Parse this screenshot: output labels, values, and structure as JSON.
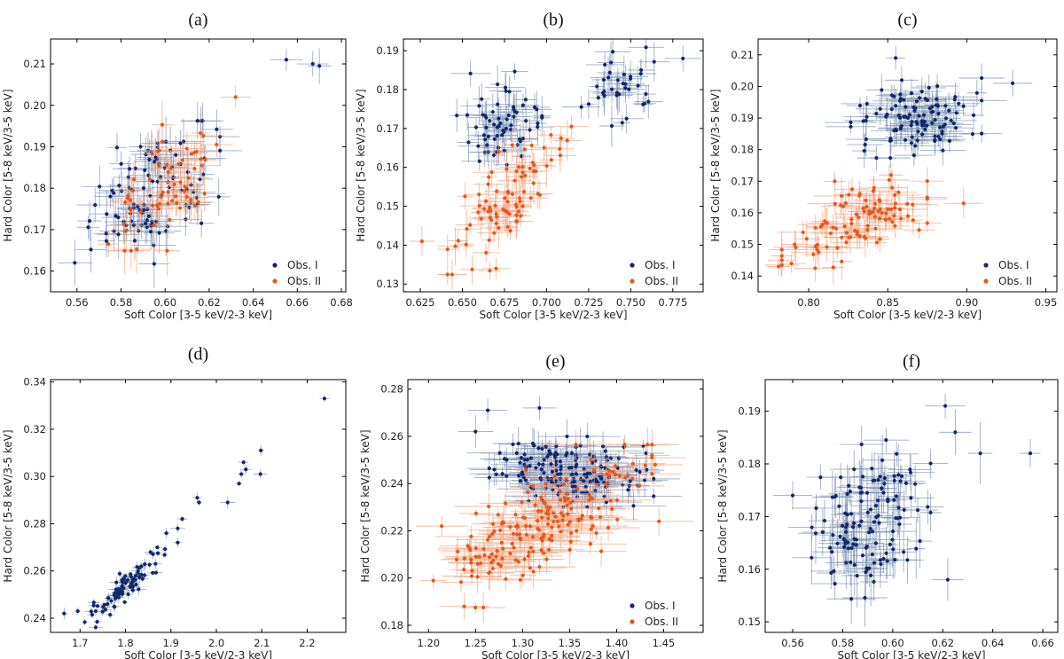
{
  "colors": {
    "obs1": "#13296b",
    "obs1_err": "#7f93b5",
    "obs2": "#e8571c",
    "obs2_err": "#f2a47f"
  },
  "chart_data": [
    {
      "id": "a",
      "type": "scatter",
      "title": "(a)",
      "xlabel": "Soft Color [3-5 keV/2-3 keV]",
      "ylabel": "Hard Color [5-8 keV/3-5 keV]",
      "xlim": [
        0.548,
        0.682
      ],
      "ylim": [
        0.155,
        0.216
      ],
      "xticks": [
        0.56,
        0.58,
        0.6,
        0.62,
        0.64,
        0.66,
        0.68
      ],
      "xtick_labels": [
        "0.56",
        "0.58",
        "0.60",
        "0.62",
        "0.64",
        "0.66",
        "0.68"
      ],
      "yticks": [
        0.16,
        0.17,
        0.18,
        0.19,
        0.2,
        0.21
      ],
      "ytick_labels": [
        "0.16",
        "0.17",
        "0.18",
        "0.19",
        "0.20",
        "0.21"
      ],
      "legend": "bottom-right",
      "series": [
        {
          "name": "Obs. I",
          "color": "obs1",
          "n": 110,
          "seed": 11,
          "clusters": [
            {
              "cx": 0.595,
              "cy": 0.179,
              "sx": 0.013,
              "sy": 0.0075,
              "rho": 0.45,
              "w": 1
            }
          ],
          "ex": [
            0.004,
            0.01
          ],
          "ey": [
            0.0025,
            0.006
          ],
          "extra": [
            [
              0.559,
              0.162
            ],
            [
              0.655,
              0.211
            ],
            [
              0.667,
              0.21
            ],
            [
              0.67,
              0.2095
            ]
          ]
        },
        {
          "name": "Obs. II",
          "color": "obs2",
          "n": 62,
          "seed": 23,
          "clusters": [
            {
              "cx": 0.6,
              "cy": 0.181,
              "sx": 0.012,
              "sy": 0.007,
              "rho": 0.5,
              "w": 1
            }
          ],
          "ex": [
            0.004,
            0.01
          ],
          "ey": [
            0.0025,
            0.006
          ],
          "extra": [
            [
              0.632,
              0.202
            ]
          ]
        }
      ]
    },
    {
      "id": "b",
      "type": "scatter",
      "title": "(b)",
      "xlabel": "Soft Color [3-5 keV/2-3 keV]",
      "ylabel": "Hard Color [5-8 keV/3-5 keV]",
      "xlim": [
        0.615,
        0.793
      ],
      "ylim": [
        0.128,
        0.193
      ],
      "xticks": [
        0.625,
        0.65,
        0.675,
        0.7,
        0.725,
        0.75,
        0.775
      ],
      "xtick_labels": [
        "0.625",
        "0.650",
        "0.675",
        "0.700",
        "0.725",
        "0.750",
        "0.775"
      ],
      "yticks": [
        0.13,
        0.14,
        0.15,
        0.16,
        0.17,
        0.18,
        0.19
      ],
      "ytick_labels": [
        "0.13",
        "0.14",
        "0.15",
        "0.16",
        "0.17",
        "0.18",
        "0.19"
      ],
      "legend": "bottom-right",
      "series": [
        {
          "name": "Obs. I",
          "color": "obs1",
          "n": 105,
          "seed": 31,
          "clusters": [
            {
              "cx": 0.672,
              "cy": 0.172,
              "sx": 0.011,
              "sy": 0.0055,
              "rho": 0.1,
              "w": 0.65
            },
            {
              "cx": 0.745,
              "cy": 0.181,
              "sx": 0.012,
              "sy": 0.0045,
              "rho": 0.1,
              "w": 0.35
            }
          ],
          "ex": [
            0.004,
            0.012
          ],
          "ey": [
            0.002,
            0.0055
          ],
          "extra": [
            [
              0.781,
              0.188
            ]
          ]
        },
        {
          "name": "Obs. II",
          "color": "obs2",
          "n": 88,
          "seed": 47,
          "clusters": [
            {
              "cx": 0.678,
              "cy": 0.152,
              "sx": 0.016,
              "sy": 0.0085,
              "rho": 0.75,
              "w": 1
            }
          ],
          "ex": [
            0.004,
            0.012
          ],
          "ey": [
            0.002,
            0.0055
          ],
          "extra": [
            [
              0.626,
              0.141
            ],
            [
              0.67,
              0.134
            ]
          ]
        }
      ]
    },
    {
      "id": "c",
      "type": "scatter",
      "title": "(c)",
      "xlabel": "Soft Color [3-5 keV/2-3 keV]",
      "ylabel": "Hard Color [5-8 keV/3-5 keV]",
      "xlim": [
        0.768,
        0.957
      ],
      "ylim": [
        0.135,
        0.215
      ],
      "xticks": [
        0.8,
        0.85,
        0.9,
        0.95
      ],
      "xtick_labels": [
        "0.80",
        "0.85",
        "0.90",
        "0.95"
      ],
      "yticks": [
        0.14,
        0.15,
        0.16,
        0.17,
        0.18,
        0.19,
        0.2,
        0.21
      ],
      "ytick_labels": [
        "0.14",
        "0.15",
        "0.16",
        "0.17",
        "0.18",
        "0.19",
        "0.20",
        "0.21"
      ],
      "legend": "bottom-right",
      "series": [
        {
          "name": "Obs. I",
          "color": "obs1",
          "n": 115,
          "seed": 53,
          "clusters": [
            {
              "cx": 0.868,
              "cy": 0.19,
              "sx": 0.018,
              "sy": 0.0055,
              "rho": 0.25,
              "w": 1
            }
          ],
          "ex": [
            0.006,
            0.018
          ],
          "ey": [
            0.002,
            0.006
          ],
          "extra": [
            [
              0.929,
              0.201
            ],
            [
              0.855,
              0.209
            ]
          ]
        },
        {
          "name": "Obs. II",
          "color": "obs2",
          "n": 105,
          "seed": 67,
          "clusters": [
            {
              "cx": 0.829,
              "cy": 0.157,
              "sx": 0.02,
              "sy": 0.0065,
              "rho": 0.55,
              "w": 1
            }
          ],
          "ex": [
            0.006,
            0.018
          ],
          "ey": [
            0.002,
            0.006
          ],
          "extra": [
            [
              0.781,
              0.143
            ],
            [
              0.898,
              0.163
            ]
          ]
        }
      ]
    },
    {
      "id": "d",
      "type": "scatter",
      "title": "(d)",
      "xlabel": "Soft Color [3-5 keV/2-3 keV]",
      "ylabel": "Hard Color [5-8 keV/3-5 keV]",
      "xlim": [
        1.635,
        2.285
      ],
      "ylim": [
        0.234,
        0.341
      ],
      "xticks": [
        1.7,
        1.8,
        1.9,
        2.0,
        2.1,
        2.2
      ],
      "xtick_labels": [
        "1.7",
        "1.8",
        "1.9",
        "2.0",
        "2.1",
        "2.2"
      ],
      "yticks": [
        0.24,
        0.26,
        0.28,
        0.3,
        0.32,
        0.34
      ],
      "ytick_labels": [
        "0.24",
        "0.26",
        "0.28",
        "0.30",
        "0.32",
        "0.34"
      ],
      "legend": "none",
      "series": [
        {
          "name": "Obs. I",
          "color": "obs1",
          "n": 90,
          "seed": 79,
          "clusters": [
            {
              "cx": 1.795,
              "cy": 0.252,
              "sx": 0.04,
              "sy": 0.0075,
              "rho": 0.92,
              "w": 1
            }
          ],
          "ex": [
            0.005,
            0.018
          ],
          "ey": [
            0.0008,
            0.0025
          ],
          "extra": [
            [
              2.238,
              0.333
            ],
            [
              2.098,
              0.311
            ],
            [
              2.097,
              0.301
            ],
            [
              2.06,
              0.306
            ],
            [
              2.055,
              0.301
            ],
            [
              2.05,
              0.297
            ],
            [
              2.065,
              0.303
            ],
            [
              2.025,
              0.289
            ],
            [
              1.958,
              0.291
            ],
            [
              1.962,
              0.289
            ],
            [
              1.925,
              0.282
            ],
            [
              1.915,
              0.278
            ],
            [
              1.915,
              0.272
            ],
            [
              1.89,
              0.276
            ],
            [
              1.87,
              0.27
            ],
            [
              1.855,
              0.268
            ],
            [
              1.665,
              0.242
            ],
            [
              1.695,
              0.243
            ]
          ]
        }
      ]
    },
    {
      "id": "e",
      "type": "scatter",
      "title": "(e)",
      "xlabel": "Soft Color [3-5 keV/2-3 keV]",
      "ylabel": "Hard Color [5-8 keV/3-5 keV]",
      "xlim": [
        1.178,
        1.492
      ],
      "ylim": [
        0.177,
        0.284
      ],
      "xticks": [
        1.2,
        1.25,
        1.3,
        1.35,
        1.4,
        1.45
      ],
      "xtick_labels": [
        "1.20",
        "1.25",
        "1.30",
        "1.35",
        "1.40",
        "1.45"
      ],
      "yticks": [
        0.18,
        0.2,
        0.22,
        0.24,
        0.26,
        0.28
      ],
      "ytick_labels": [
        "0.18",
        "0.20",
        "0.22",
        "0.24",
        "0.26",
        "0.28"
      ],
      "legend": "bottom-right",
      "series": [
        {
          "name": "Obs. I",
          "color": "obs1",
          "n": 175,
          "seed": 83,
          "clusters": [
            {
              "cx": 1.352,
              "cy": 0.245,
              "sx": 0.038,
              "sy": 0.0065,
              "rho": -0.15,
              "w": 1
            }
          ],
          "ex": [
            0.012,
            0.04
          ],
          "ey": [
            0.002,
            0.0075
          ],
          "extra": [
            [
              1.263,
              0.271
            ],
            [
              1.318,
              0.272
            ],
            [
              1.25,
              0.262
            ]
          ]
        },
        {
          "name": "Obs. II",
          "color": "obs2",
          "n": 190,
          "seed": 97,
          "clusters": [
            {
              "cx": 1.318,
              "cy": 0.222,
              "sx": 0.052,
              "sy": 0.015,
              "rho": 0.72,
              "w": 1
            }
          ],
          "ex": [
            0.012,
            0.04
          ],
          "ey": [
            0.002,
            0.0075
          ],
          "extra": [
            [
              1.214,
              0.222
            ],
            [
              1.441,
              0.248
            ],
            [
              1.445,
              0.224
            ],
            [
              1.238,
              0.188
            ]
          ]
        }
      ]
    },
    {
      "id": "f",
      "type": "scatter",
      "title": "(f)",
      "xlabel": "Soft Color [3-5 keV/2-3 keV]",
      "ylabel": "Hard Color [5-8 keV/3-5 keV]",
      "xlim": [
        0.549,
        0.666
      ],
      "ylim": [
        0.148,
        0.196
      ],
      "xticks": [
        0.56,
        0.58,
        0.6,
        0.62,
        0.64,
        0.66
      ],
      "xtick_labels": [
        "0.56",
        "0.58",
        "0.60",
        "0.62",
        "0.64",
        "0.66"
      ],
      "yticks": [
        0.15,
        0.16,
        0.17,
        0.18,
        0.19
      ],
      "ytick_labels": [
        "0.15",
        "0.16",
        "0.17",
        "0.18",
        "0.19"
      ],
      "legend": "none",
      "series": [
        {
          "name": "Obs. I",
          "color": "obs1",
          "n": 135,
          "seed": 101,
          "clusters": [
            {
              "cx": 0.591,
              "cy": 0.17,
              "sx": 0.0105,
              "sy": 0.0068,
              "rho": 0.3,
              "w": 1
            }
          ],
          "ex": [
            0.003,
            0.01
          ],
          "ey": [
            0.002,
            0.006
          ],
          "extra": [
            [
              0.655,
              0.182
            ],
            [
              0.635,
              0.182
            ],
            [
              0.621,
              0.191
            ],
            [
              0.625,
              0.186
            ],
            [
              0.56,
              0.174
            ],
            [
              0.622,
              0.158
            ]
          ]
        }
      ]
    }
  ]
}
